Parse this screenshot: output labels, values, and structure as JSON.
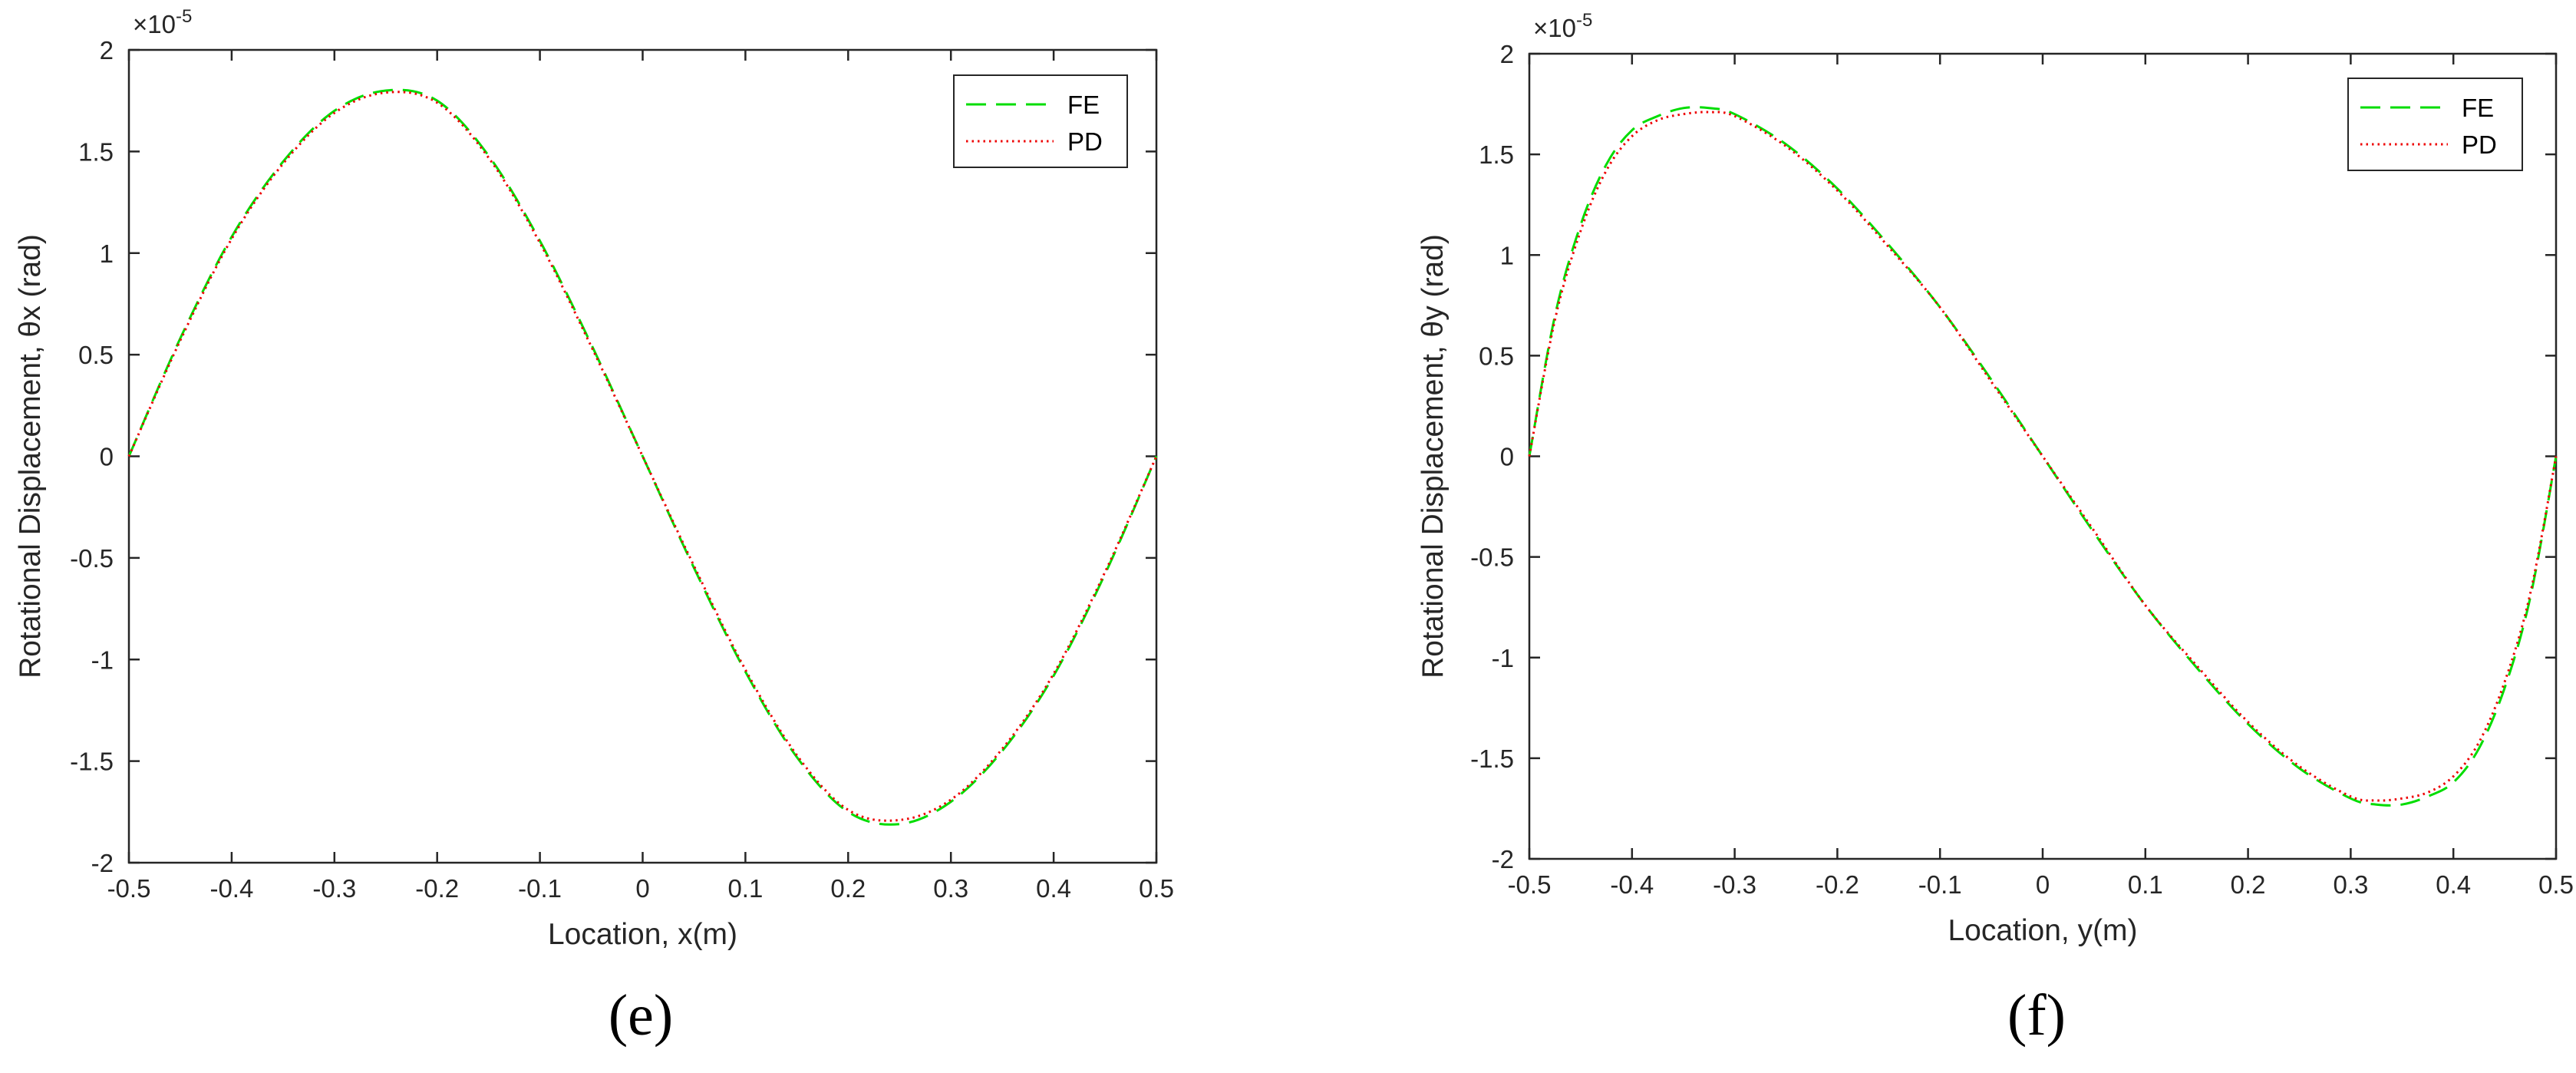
{
  "chart_data": [
    {
      "type": "line",
      "panel_label": "(e)",
      "xlabel": "Location, x(m)",
      "ylabel": "Rotational Displacement, θx (rad)",
      "y_exponent": "×10",
      "y_exponent_power": "-5",
      "xlim": [
        -0.5,
        0.5
      ],
      "ylim": [
        -2,
        2
      ],
      "xticks": [
        -0.5,
        -0.4,
        -0.3,
        -0.2,
        -0.1,
        0,
        0.1,
        0.2,
        0.3,
        0.4,
        0.5
      ],
      "xtick_labels": [
        "-0.5",
        "-0.4",
        "-0.3",
        "-0.2",
        "-0.1",
        "0",
        "0.1",
        "0.2",
        "0.3",
        "0.4",
        "0.5"
      ],
      "yticks": [
        -2,
        -1.5,
        -1,
        -0.5,
        0,
        0.5,
        1,
        1.5,
        2
      ],
      "ytick_labels": [
        "-2",
        "-1.5",
        "-1",
        "-0.5",
        "0",
        "0.5",
        "1",
        "1.5",
        "2"
      ],
      "grid": false,
      "legend_position": "top-right",
      "x": [
        -0.5,
        -0.45,
        -0.4,
        -0.35,
        -0.3,
        -0.25,
        -0.2,
        -0.15,
        -0.1,
        -0.05,
        0,
        0.05,
        0.1,
        0.15,
        0.2,
        0.25,
        0.3,
        0.35,
        0.4,
        0.45,
        0.5
      ],
      "series": [
        {
          "name": "FE",
          "color": "#00dd00",
          "dash": "long-dash",
          "values": [
            0,
            0.58,
            1.08,
            1.45,
            1.7,
            1.8,
            1.75,
            1.48,
            1.06,
            0.55,
            0,
            -0.55,
            -1.06,
            -1.48,
            -1.75,
            -1.81,
            -1.7,
            -1.45,
            -1.08,
            -0.58,
            0
          ]
        },
        {
          "name": "PD",
          "color": "#ee0000",
          "dash": "dotted",
          "values": [
            0,
            0.57,
            1.07,
            1.44,
            1.69,
            1.79,
            1.74,
            1.47,
            1.05,
            0.54,
            0,
            -0.54,
            -1.05,
            -1.47,
            -1.74,
            -1.79,
            -1.69,
            -1.44,
            -1.07,
            -0.57,
            0
          ]
        }
      ]
    },
    {
      "type": "line",
      "panel_label": "(f)",
      "xlabel": "Location, y(m)",
      "ylabel": "Rotational Displacement, θy (rad)",
      "y_exponent": "×10",
      "y_exponent_power": "-5",
      "xlim": [
        -0.5,
        0.5
      ],
      "ylim": [
        -2,
        2
      ],
      "xticks": [
        -0.5,
        -0.4,
        -0.3,
        -0.2,
        -0.1,
        0,
        0.1,
        0.2,
        0.3,
        0.4,
        0.5
      ],
      "xtick_labels": [
        "-0.5",
        "-0.4",
        "-0.3",
        "-0.2",
        "-0.1",
        "0",
        "0.1",
        "0.2",
        "0.3",
        "0.4",
        "0.5"
      ],
      "yticks": [
        -2,
        -1.5,
        -1,
        -0.5,
        0,
        0.5,
        1,
        1.5,
        2
      ],
      "ytick_labels": [
        "-2",
        "-1.5",
        "-1",
        "-0.5",
        "0",
        "0.5",
        "1",
        "1.5",
        "2"
      ],
      "grid": false,
      "legend_position": "top-right",
      "x": [
        -0.5,
        -0.475,
        -0.45,
        -0.425,
        -0.4,
        -0.375,
        -0.35,
        -0.325,
        -0.3,
        -0.25,
        -0.2,
        -0.15,
        -0.1,
        -0.05,
        0,
        0.05,
        0.1,
        0.15,
        0.2,
        0.25,
        0.3,
        0.325,
        0.35,
        0.375,
        0.4,
        0.425,
        0.45,
        0.475,
        0.5
      ],
      "series": [
        {
          "name": "FE",
          "color": "#00dd00",
          "dash": "long-dash",
          "values": [
            0,
            0.7,
            1.15,
            1.45,
            1.62,
            1.69,
            1.73,
            1.73,
            1.7,
            1.55,
            1.33,
            1.05,
            0.74,
            0.38,
            0,
            -0.38,
            -0.74,
            -1.05,
            -1.33,
            -1.55,
            -1.7,
            -1.73,
            -1.73,
            -1.69,
            -1.62,
            -1.45,
            -1.15,
            -0.7,
            0
          ]
        },
        {
          "name": "PD",
          "color": "#ee0000",
          "dash": "dotted",
          "values": [
            0,
            0.68,
            1.12,
            1.42,
            1.59,
            1.67,
            1.7,
            1.71,
            1.69,
            1.54,
            1.32,
            1.04,
            0.74,
            0.37,
            0,
            -0.37,
            -0.74,
            -1.04,
            -1.32,
            -1.54,
            -1.69,
            -1.71,
            -1.7,
            -1.67,
            -1.59,
            -1.42,
            -1.12,
            -0.68,
            0
          ]
        }
      ]
    }
  ]
}
